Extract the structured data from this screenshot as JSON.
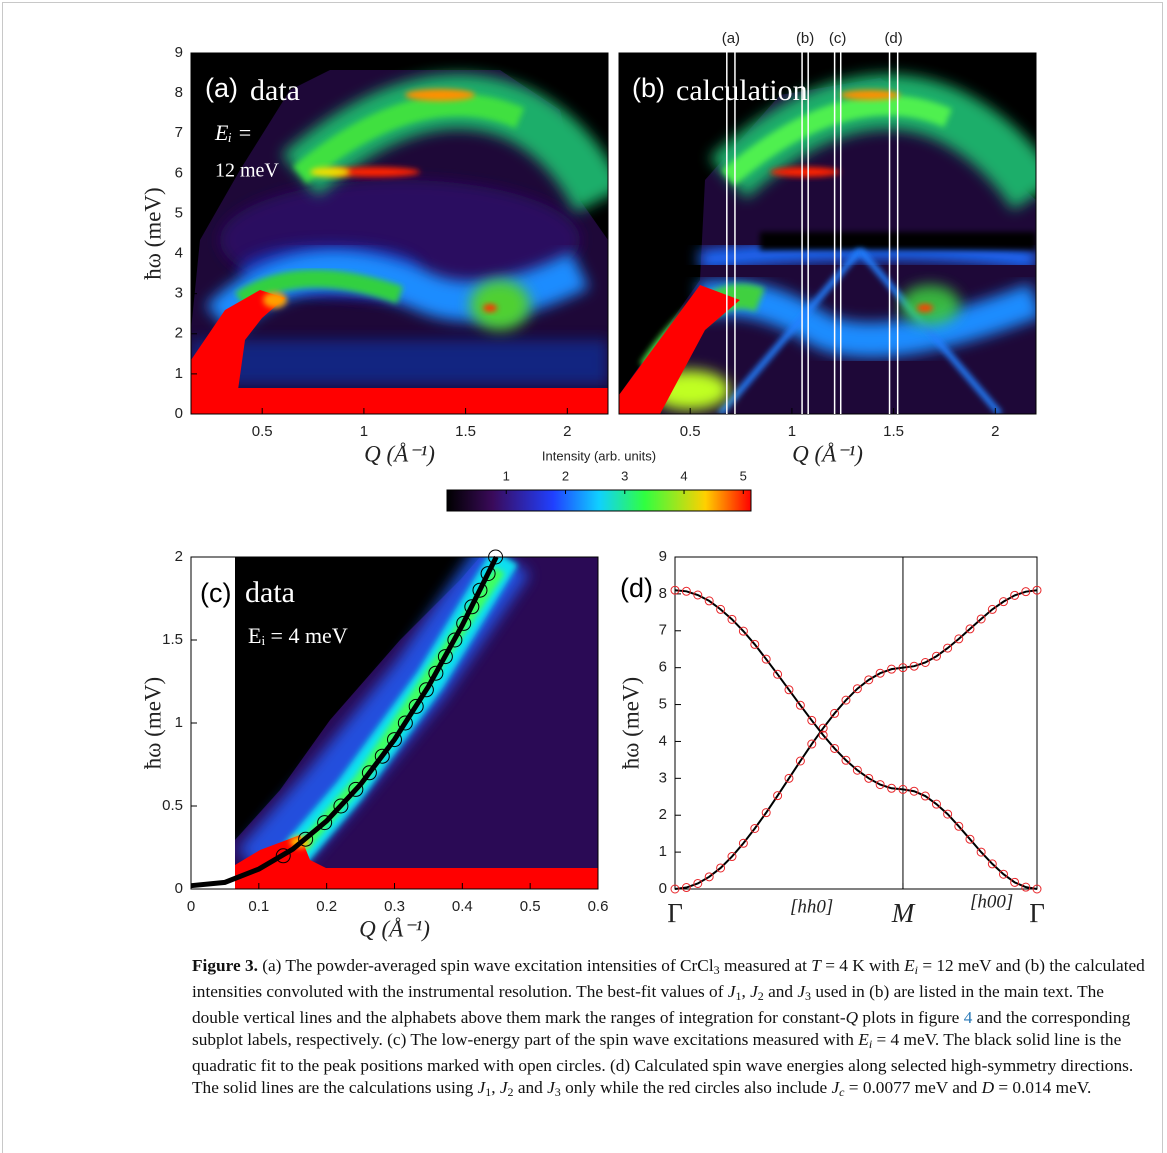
{
  "chart_data": [
    {
      "type": "heatmap",
      "title": "(a)",
      "annotations": [
        "data",
        "Eᵢ =",
        "12 meV"
      ],
      "xlabel": "Q (Å⁻¹)",
      "ylabel": "ħω (meV)",
      "xlim": [
        0.15,
        2.2
      ],
      "ylim": [
        0,
        9
      ],
      "xticks": [
        0.5,
        1,
        1.5,
        2
      ],
      "yticks": [
        0,
        1,
        2,
        3,
        4,
        5,
        6,
        7,
        8,
        9
      ]
    },
    {
      "type": "heatmap",
      "title": "(b)",
      "annotations": [
        "calculation"
      ],
      "xlabel": "Q (Å⁻¹)",
      "xlim": [
        0.15,
        2.2
      ],
      "ylim": [
        0,
        9
      ],
      "xticks": [
        0.5,
        1,
        1.5,
        2
      ],
      "markers": [
        {
          "label": "(a)",
          "range": [
            0.68,
            0.72
          ]
        },
        {
          "label": "(b)",
          "range": [
            1.05,
            1.08
          ]
        },
        {
          "label": "(c)",
          "range": [
            1.21,
            1.24
          ]
        },
        {
          "label": "(d)",
          "range": [
            1.48,
            1.52
          ]
        }
      ]
    },
    {
      "type": "scatter",
      "title": "(c)",
      "annotations": [
        "data",
        "Eᵢ = 4 meV"
      ],
      "xlabel": "Q (Å⁻¹)",
      "ylabel": "ħω (meV)",
      "xlim": [
        0,
        0.6
      ],
      "ylim": [
        0,
        2
      ],
      "xticks": [
        0,
        0.1,
        0.2,
        0.3,
        0.4,
        0.5,
        0.6
      ],
      "yticks": [
        0,
        0.5,
        1,
        1.5,
        2
      ],
      "fit": {
        "color": "#000000",
        "x": [
          0,
          0.05,
          0.1,
          0.15,
          0.2,
          0.25,
          0.3,
          0.35,
          0.4,
          0.45
        ],
        "values": [
          0.02,
          0.04,
          0.12,
          0.24,
          0.41,
          0.63,
          0.9,
          1.22,
          1.59,
          2.0
        ]
      },
      "points": {
        "color": "#000000",
        "x": [
          0.136,
          0.169,
          0.197,
          0.221,
          0.243,
          0.263,
          0.282,
          0.3,
          0.316,
          0.332,
          0.347,
          0.361,
          0.375,
          0.389,
          0.402,
          0.414,
          0.426,
          0.438,
          0.449
        ],
        "values": [
          0.2,
          0.3,
          0.4,
          0.5,
          0.6,
          0.7,
          0.8,
          0.9,
          1.0,
          1.1,
          1.2,
          1.3,
          1.4,
          1.5,
          1.6,
          1.7,
          1.8,
          1.9,
          2.0
        ]
      }
    },
    {
      "type": "line",
      "title": "(d)",
      "annotations": [
        "[hh0]",
        "[h00]"
      ],
      "ylabel": "ħω (meV)",
      "xlim": [
        0,
        1.588
      ],
      "ylim": [
        0,
        9
      ],
      "xticks": [
        {
          "value": 0,
          "label": "Γ"
        },
        {
          "value": 1,
          "label": "M"
        },
        {
          "value": 1.588,
          "label": "Γ"
        }
      ],
      "yticks": [
        0,
        1,
        2,
        3,
        4,
        5,
        6,
        7,
        8,
        9
      ],
      "x": [
        0,
        0.05,
        0.1,
        0.15,
        0.2,
        0.25,
        0.3,
        0.35,
        0.4,
        0.45,
        0.5,
        0.55,
        0.6,
        0.65,
        0.7,
        0.75,
        0.8,
        0.85,
        0.9,
        0.95,
        1.0,
        1.049,
        1.098,
        1.147,
        1.196,
        1.245,
        1.294,
        1.343,
        1.392,
        1.441,
        1.49,
        1.539,
        1.588
      ],
      "series": [
        {
          "color": "#000000",
          "marker_color": "#e8262a",
          "values": [
            0,
            0.04,
            0.15,
            0.33,
            0.57,
            0.88,
            1.24,
            1.64,
            2.07,
            2.53,
            3.0,
            3.47,
            3.93,
            4.36,
            4.76,
            5.12,
            5.43,
            5.67,
            5.85,
            5.96,
            6.0,
            6.04,
            6.14,
            6.31,
            6.53,
            6.78,
            7.05,
            7.32,
            7.58,
            7.79,
            7.96,
            8.06,
            8.1
          ]
        },
        {
          "color": "#000000",
          "marker_color": "#e8262a",
          "values": [
            8.1,
            8.07,
            7.97,
            7.81,
            7.58,
            7.31,
            6.99,
            6.63,
            6.23,
            5.82,
            5.4,
            4.98,
            4.57,
            4.17,
            3.81,
            3.49,
            3.22,
            3.0,
            2.83,
            2.73,
            2.7,
            2.65,
            2.52,
            2.3,
            2.03,
            1.7,
            1.35,
            1.0,
            0.68,
            0.4,
            0.18,
            0.05,
            0
          ]
        }
      ]
    }
  ],
  "colorbar": {
    "label": "Intensity (arb. units)",
    "lim": [
      0,
      5.13
    ],
    "ticks": [
      1,
      2,
      3,
      4,
      5
    ]
  },
  "caption": {
    "runs": [
      "Figure 3.",
      " (a) The powder-averaged spin wave excitation intensities of CrCl",
      "3",
      " measured at ",
      "T",
      " = 4 K with ",
      "E",
      "i",
      " = 12 meV and (b) the calculated intensities convoluted with the instrumental resolution. The best-fit values of ",
      "J",
      "1",
      ", ",
      "J",
      "2",
      " and ",
      "J",
      "3",
      " used in (b) are listed in the main text. The double vertical lines and the alphabets above them mark the ranges of integration for constant-",
      "Q",
      " plots in figure ",
      "4",
      " and the corresponding subplot labels, respectively. (c) The low-energy part of the spin wave excitations measured with ",
      "E",
      "i",
      " = 4 meV. The black solid line is the quadratic fit to the peak positions marked with open circles. (d) Calculated spin wave energies along selected high-symmetry directions. The solid lines are the calculations using ",
      "J",
      "1",
      ", ",
      "J",
      "2",
      " and ",
      "J",
      "3",
      " only while the red circles also include ",
      "J",
      "c",
      " = 0.0077 meV and ",
      "D",
      " = 0.014 meV."
    ]
  }
}
